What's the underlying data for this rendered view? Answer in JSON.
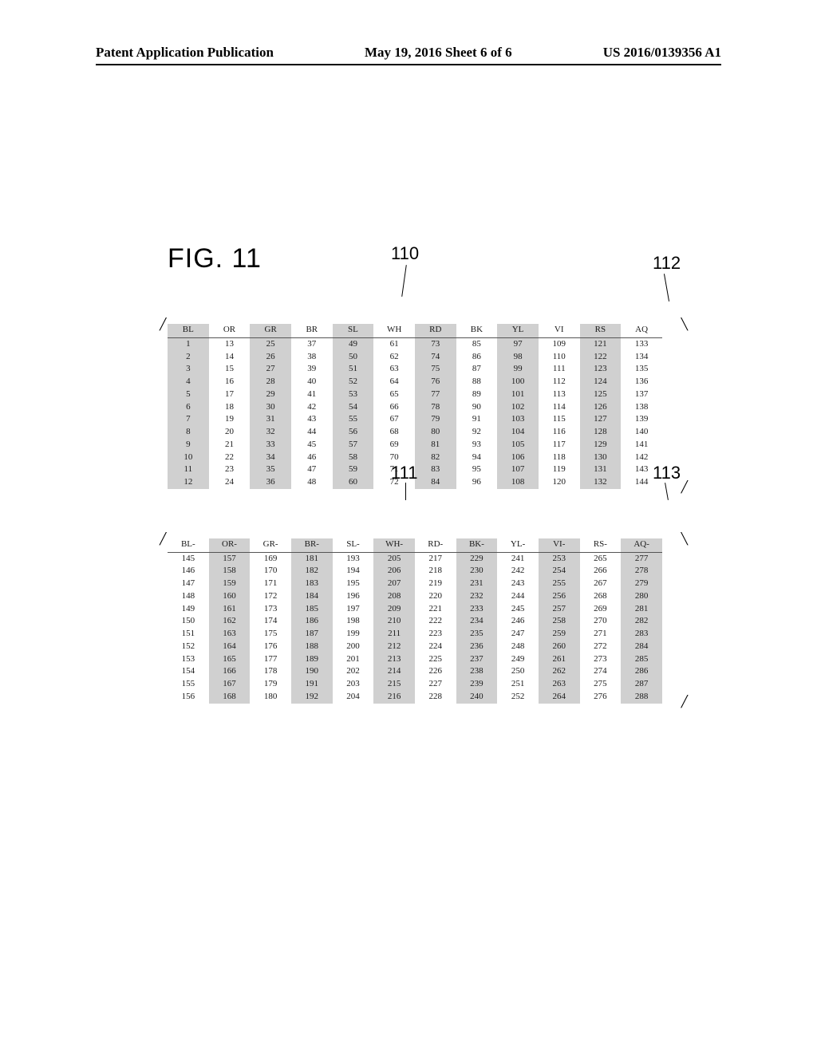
{
  "header": {
    "left": "Patent Application Publication",
    "center": "May 19, 2016  Sheet 6 of 6",
    "right": "US 2016/0139356 A1"
  },
  "figure": {
    "title": "FIG. 11",
    "callouts": {
      "c110": "110",
      "c111": "111",
      "c112": "112",
      "c113": "113"
    }
  },
  "table1": {
    "headers": [
      "BL",
      "OR",
      "GR",
      "BR",
      "SL",
      "WH",
      "RD",
      "BK",
      "YL",
      "VI",
      "RS",
      "AQ"
    ],
    "shaded_cols": [
      0,
      2,
      4,
      6,
      8,
      10
    ],
    "rows": [
      [
        "1",
        "13",
        "25",
        "37",
        "49",
        "61",
        "73",
        "85",
        "97",
        "109",
        "121",
        "133"
      ],
      [
        "2",
        "14",
        "26",
        "38",
        "50",
        "62",
        "74",
        "86",
        "98",
        "110",
        "122",
        "134"
      ],
      [
        "3",
        "15",
        "27",
        "39",
        "51",
        "63",
        "75",
        "87",
        "99",
        "111",
        "123",
        "135"
      ],
      [
        "4",
        "16",
        "28",
        "40",
        "52",
        "64",
        "76",
        "88",
        "100",
        "112",
        "124",
        "136"
      ],
      [
        "5",
        "17",
        "29",
        "41",
        "53",
        "65",
        "77",
        "89",
        "101",
        "113",
        "125",
        "137"
      ],
      [
        "6",
        "18",
        "30",
        "42",
        "54",
        "66",
        "78",
        "90",
        "102",
        "114",
        "126",
        "138"
      ],
      [
        "7",
        "19",
        "31",
        "43",
        "55",
        "67",
        "79",
        "91",
        "103",
        "115",
        "127",
        "139"
      ],
      [
        "8",
        "20",
        "32",
        "44",
        "56",
        "68",
        "80",
        "92",
        "104",
        "116",
        "128",
        "140"
      ],
      [
        "9",
        "21",
        "33",
        "45",
        "57",
        "69",
        "81",
        "93",
        "105",
        "117",
        "129",
        "141"
      ],
      [
        "10",
        "22",
        "34",
        "46",
        "58",
        "70",
        "82",
        "94",
        "106",
        "118",
        "130",
        "142"
      ],
      [
        "11",
        "23",
        "35",
        "47",
        "59",
        "71",
        "83",
        "95",
        "107",
        "119",
        "131",
        "143"
      ],
      [
        "12",
        "24",
        "36",
        "48",
        "60",
        "72",
        "84",
        "96",
        "108",
        "120",
        "132",
        "144"
      ]
    ]
  },
  "table2": {
    "headers": [
      "BL-",
      "OR-",
      "GR-",
      "BR-",
      "SL-",
      "WH-",
      "RD-",
      "BK-",
      "YL-",
      "VI-",
      "RS-",
      "AQ-"
    ],
    "shaded_cols": [
      1,
      3,
      5,
      7,
      9,
      11
    ],
    "rows": [
      [
        "145",
        "157",
        "169",
        "181",
        "193",
        "205",
        "217",
        "229",
        "241",
        "253",
        "265",
        "277"
      ],
      [
        "146",
        "158",
        "170",
        "182",
        "194",
        "206",
        "218",
        "230",
        "242",
        "254",
        "266",
        "278"
      ],
      [
        "147",
        "159",
        "171",
        "183",
        "195",
        "207",
        "219",
        "231",
        "243",
        "255",
        "267",
        "279"
      ],
      [
        "148",
        "160",
        "172",
        "184",
        "196",
        "208",
        "220",
        "232",
        "244",
        "256",
        "268",
        "280"
      ],
      [
        "149",
        "161",
        "173",
        "185",
        "197",
        "209",
        "221",
        "233",
        "245",
        "257",
        "269",
        "281"
      ],
      [
        "150",
        "162",
        "174",
        "186",
        "198",
        "210",
        "222",
        "234",
        "246",
        "258",
        "270",
        "282"
      ],
      [
        "151",
        "163",
        "175",
        "187",
        "199",
        "211",
        "223",
        "235",
        "247",
        "259",
        "271",
        "283"
      ],
      [
        "152",
        "164",
        "176",
        "188",
        "200",
        "212",
        "224",
        "236",
        "248",
        "260",
        "272",
        "284"
      ],
      [
        "153",
        "165",
        "177",
        "189",
        "201",
        "213",
        "225",
        "237",
        "249",
        "261",
        "273",
        "285"
      ],
      [
        "154",
        "166",
        "178",
        "190",
        "202",
        "214",
        "226",
        "238",
        "250",
        "262",
        "274",
        "286"
      ],
      [
        "155",
        "167",
        "179",
        "191",
        "203",
        "215",
        "227",
        "239",
        "251",
        "263",
        "275",
        "287"
      ],
      [
        "156",
        "168",
        "180",
        "192",
        "204",
        "216",
        "228",
        "240",
        "252",
        "264",
        "276",
        "288"
      ]
    ]
  },
  "style": {
    "shade_color": "#d0d0d0",
    "text_color": "#1a1a1a",
    "header_font_size": 17,
    "fig_title_font_size": 34,
    "callout_font_size": 22,
    "table_font_size": 11
  }
}
